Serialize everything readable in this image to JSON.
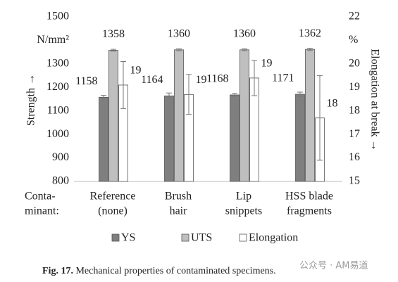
{
  "chart_data": {
    "type": "bar",
    "y_label": "Strength →",
    "y2_label": "Elongation at break →",
    "row_label": [
      "Conta-",
      "minant:"
    ],
    "categories": [
      [
        "Reference",
        "(none)"
      ],
      [
        "Brush",
        "hair"
      ],
      [
        "Lip",
        "snippets"
      ],
      [
        "HSS blade",
        "fragments"
      ]
    ],
    "series": [
      {
        "name": "YS",
        "color": "#7f7f7f",
        "values": [
          1158,
          1164,
          1168,
          1171
        ],
        "errors": [
          8,
          12,
          7,
          9
        ]
      },
      {
        "name": "UTS",
        "color": "#bfbfbf",
        "values": [
          1358,
          1360,
          1360,
          1362
        ],
        "errors": [
          4,
          4,
          4,
          5
        ]
      },
      {
        "name": "Elongation",
        "color": "#ffffff",
        "axis": "y2",
        "values": [
          19.1,
          18.7,
          19.4,
          17.7
        ],
        "value_labels": [
          "19",
          "19",
          "19",
          "18"
        ],
        "errors": [
          1.0,
          0.85,
          0.75,
          1.8
        ]
      }
    ],
    "ylim": [
      800,
      1500
    ],
    "yticks": [
      800,
      900,
      1000,
      1100,
      1200,
      1300,
      {
        "value": 1400,
        "label": "N/mm²"
      },
      1500
    ],
    "y2lim": [
      15,
      22
    ],
    "y2ticks": [
      15,
      16,
      17,
      18,
      19,
      20,
      {
        "value": 21,
        "label": "%"
      },
      22
    ],
    "grid": false,
    "legend": "bottom",
    "caption": {
      "bold": "Fig. 17.",
      "text": "Mechanical properties of contaminated specimens."
    },
    "watermark": "公众号 · AM易道"
  }
}
